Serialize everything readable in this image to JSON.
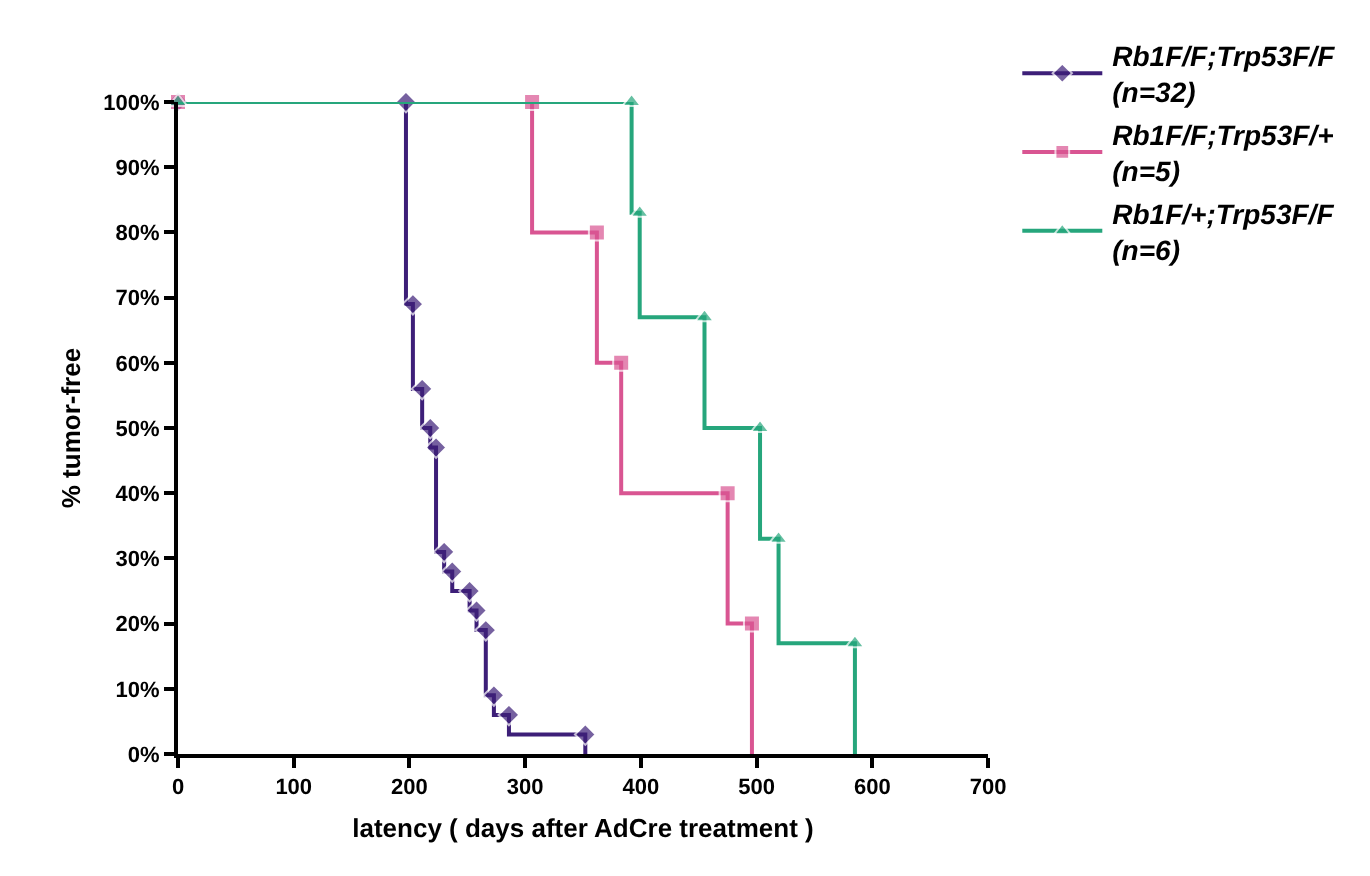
{
  "chart_data": {
    "type": "step",
    "xlabel": "latency ( days after AdCre treatment )",
    "ylabel": "% tumor-free",
    "series": [
      {
        "name": "Rb1F/F;Trp53F/F\n(n=32)",
        "color": "#3d1f78",
        "marker": "diamond",
        "x": [
          0,
          197,
          203,
          211,
          218,
          223,
          230,
          237,
          252,
          258,
          266,
          273,
          286,
          352,
          352
        ],
        "values": [
          100,
          100,
          69,
          56,
          50,
          47,
          31,
          28,
          25,
          22,
          19,
          9,
          6,
          3,
          0
        ]
      },
      {
        "name": "Rb1F/F;Trp53F/+\n(n=5)",
        "color": "#d95592",
        "marker": "square",
        "x": [
          0,
          306,
          362,
          383,
          475,
          496,
          496
        ],
        "values": [
          100,
          100,
          80,
          60,
          40,
          20,
          0
        ]
      },
      {
        "name": "Rb1F/+;Trp53F/F\n(n=6)",
        "color": "#26a67c",
        "marker": "triangle",
        "x": [
          0,
          392,
          399,
          455,
          503,
          519,
          585,
          585
        ],
        "values": [
          100,
          100,
          83,
          67,
          50,
          33,
          17,
          0
        ]
      }
    ],
    "xlim": [
      0,
      700
    ],
    "xticks": [
      0,
      100,
      200,
      300,
      400,
      500,
      600,
      700
    ],
    "ylim": [
      0,
      100
    ],
    "yticks": [
      {
        "value": 0,
        "label": "0%"
      },
      {
        "value": 10,
        "label": "10%"
      },
      {
        "value": 20,
        "label": "20%"
      },
      {
        "value": 30,
        "label": "30%"
      },
      {
        "value": 40,
        "label": "40%"
      },
      {
        "value": 50,
        "label": "50%"
      },
      {
        "value": 60,
        "label": "60%"
      },
      {
        "value": 70,
        "label": "70%"
      },
      {
        "value": 80,
        "label": "80%"
      },
      {
        "value": 90,
        "label": "90%"
      },
      {
        "value": 100,
        "label": "100%"
      }
    ],
    "grid": false,
    "legend": "top right",
    "line_style": "solid"
  }
}
